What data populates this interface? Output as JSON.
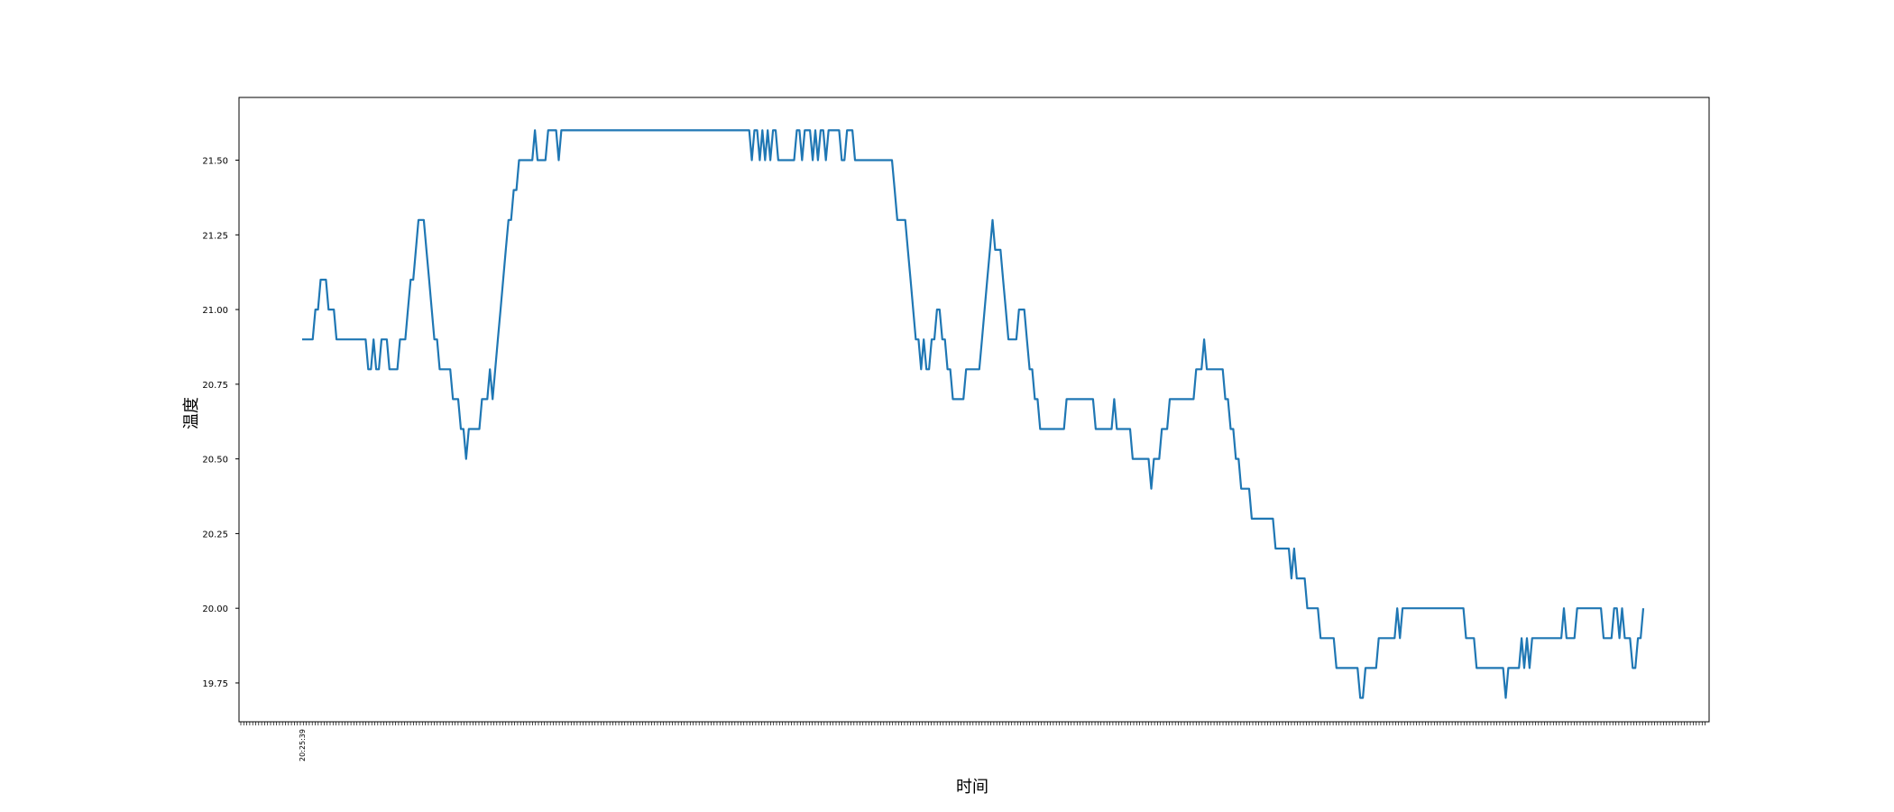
{
  "chart_data": {
    "type": "line",
    "title": "",
    "xlabel": "时间",
    "ylabel": "温度",
    "ylim": [
      19.62,
      21.71
    ],
    "yticks": [
      19.75,
      20.0,
      20.25,
      20.5,
      20.75,
      21.0,
      21.25,
      21.5
    ],
    "ytick_labels": [
      "19.75",
      "20.00",
      "20.25",
      "20.50",
      "20.75",
      "21.00",
      "21.25",
      "21.50"
    ],
    "xtick_labels": [
      "20:25:39"
    ],
    "grid": false,
    "legend": "none",
    "series": [
      {
        "color": "#1f77b4",
        "values": [
          20.9,
          20.9,
          20.9,
          20.9,
          20.9,
          21.0,
          21.0,
          21.1,
          21.1,
          21.1,
          21.0,
          21.0,
          21.0,
          20.9,
          20.9,
          20.9,
          20.9,
          20.9,
          20.9,
          20.9,
          20.9,
          20.9,
          20.9,
          20.9,
          20.9,
          20.8,
          20.8,
          20.9,
          20.8,
          20.8,
          20.9,
          20.9,
          20.9,
          20.8,
          20.8,
          20.8,
          20.8,
          20.9,
          20.9,
          20.9,
          21.0,
          21.1,
          21.1,
          21.2,
          21.3,
          21.3,
          21.3,
          21.2,
          21.1,
          21.0,
          20.9,
          20.9,
          20.8,
          20.8,
          20.8,
          20.8,
          20.8,
          20.7,
          20.7,
          20.7,
          20.6,
          20.6,
          20.5,
          20.6,
          20.6,
          20.6,
          20.6,
          20.6,
          20.7,
          20.7,
          20.7,
          20.8,
          20.7,
          20.8,
          20.9,
          21.0,
          21.1,
          21.2,
          21.3,
          21.3,
          21.4,
          21.4,
          21.5,
          21.5,
          21.5,
          21.5,
          21.5,
          21.5,
          21.6,
          21.5,
          21.5,
          21.5,
          21.5,
          21.6,
          21.6,
          21.6,
          21.6,
          21.5,
          21.6,
          21.6,
          21.6,
          21.6,
          21.6,
          21.6,
          21.6,
          21.6,
          21.6,
          21.6,
          21.6,
          21.6,
          21.6,
          21.6,
          21.6,
          21.6,
          21.6,
          21.6,
          21.6,
          21.6,
          21.6,
          21.6,
          21.6,
          21.6,
          21.6,
          21.6,
          21.6,
          21.6,
          21.6,
          21.6,
          21.6,
          21.6,
          21.6,
          21.6,
          21.6,
          21.6,
          21.6,
          21.6,
          21.6,
          21.6,
          21.6,
          21.6,
          21.6,
          21.6,
          21.6,
          21.6,
          21.6,
          21.6,
          21.6,
          21.6,
          21.6,
          21.6,
          21.6,
          21.6,
          21.6,
          21.6,
          21.6,
          21.6,
          21.6,
          21.6,
          21.6,
          21.6,
          21.6,
          21.6,
          21.6,
          21.6,
          21.6,
          21.6,
          21.6,
          21.6,
          21.6,
          21.6,
          21.5,
          21.6,
          21.6,
          21.5,
          21.6,
          21.5,
          21.6,
          21.5,
          21.6,
          21.6,
          21.5,
          21.5,
          21.5,
          21.5,
          21.5,
          21.5,
          21.5,
          21.6,
          21.6,
          21.5,
          21.6,
          21.6,
          21.6,
          21.5,
          21.6,
          21.5,
          21.6,
          21.6,
          21.5,
          21.6,
          21.6,
          21.6,
          21.6,
          21.6,
          21.5,
          21.5,
          21.6,
          21.6,
          21.6,
          21.5,
          21.5,
          21.5,
          21.5,
          21.5,
          21.5,
          21.5,
          21.5,
          21.5,
          21.5,
          21.5,
          21.5,
          21.5,
          21.5,
          21.5,
          21.4,
          21.3,
          21.3,
          21.3,
          21.3,
          21.2,
          21.1,
          21.0,
          20.9,
          20.9,
          20.8,
          20.9,
          20.8,
          20.8,
          20.9,
          20.9,
          21.0,
          21.0,
          20.9,
          20.9,
          20.8,
          20.8,
          20.7,
          20.7,
          20.7,
          20.7,
          20.7,
          20.8,
          20.8,
          20.8,
          20.8,
          20.8,
          20.8,
          20.9,
          21.0,
          21.1,
          21.2,
          21.3,
          21.2,
          21.2,
          21.2,
          21.1,
          21.0,
          20.9,
          20.9,
          20.9,
          20.9,
          21.0,
          21.0,
          21.0,
          20.9,
          20.8,
          20.8,
          20.7,
          20.7,
          20.6,
          20.6,
          20.6,
          20.6,
          20.6,
          20.6,
          20.6,
          20.6,
          20.6,
          20.6,
          20.7,
          20.7,
          20.7,
          20.7,
          20.7,
          20.7,
          20.7,
          20.7,
          20.7,
          20.7,
          20.7,
          20.6,
          20.6,
          20.6,
          20.6,
          20.6,
          20.6,
          20.6,
          20.7,
          20.6,
          20.6,
          20.6,
          20.6,
          20.6,
          20.6,
          20.5,
          20.5,
          20.5,
          20.5,
          20.5,
          20.5,
          20.5,
          20.4,
          20.5,
          20.5,
          20.5,
          20.6,
          20.6,
          20.6,
          20.7,
          20.7,
          20.7,
          20.7,
          20.7,
          20.7,
          20.7,
          20.7,
          20.7,
          20.7,
          20.8,
          20.8,
          20.8,
          20.9,
          20.8,
          20.8,
          20.8,
          20.8,
          20.8,
          20.8,
          20.8,
          20.7,
          20.7,
          20.6,
          20.6,
          20.5,
          20.5,
          20.4,
          20.4,
          20.4,
          20.4,
          20.3,
          20.3,
          20.3,
          20.3,
          20.3,
          20.3,
          20.3,
          20.3,
          20.3,
          20.2,
          20.2,
          20.2,
          20.2,
          20.2,
          20.2,
          20.1,
          20.2,
          20.1,
          20.1,
          20.1,
          20.1,
          20.0,
          20.0,
          20.0,
          20.0,
          20.0,
          19.9,
          19.9,
          19.9,
          19.9,
          19.9,
          19.9,
          19.8,
          19.8,
          19.8,
          19.8,
          19.8,
          19.8,
          19.8,
          19.8,
          19.8,
          19.7,
          19.7,
          19.8,
          19.8,
          19.8,
          19.8,
          19.8,
          19.9,
          19.9,
          19.9,
          19.9,
          19.9,
          19.9,
          19.9,
          20.0,
          19.9,
          20.0,
          20.0,
          20.0,
          20.0,
          20.0,
          20.0,
          20.0,
          20.0,
          20.0,
          20.0,
          20.0,
          20.0,
          20.0,
          20.0,
          20.0,
          20.0,
          20.0,
          20.0,
          20.0,
          20.0,
          20.0,
          20.0,
          20.0,
          20.0,
          19.9,
          19.9,
          19.9,
          19.9,
          19.8,
          19.8,
          19.8,
          19.8,
          19.8,
          19.8,
          19.8,
          19.8,
          19.8,
          19.8,
          19.8,
          19.7,
          19.8,
          19.8,
          19.8,
          19.8,
          19.8,
          19.9,
          19.8,
          19.9,
          19.8,
          19.9,
          19.9,
          19.9,
          19.9,
          19.9,
          19.9,
          19.9,
          19.9,
          19.9,
          19.9,
          19.9,
          19.9,
          20.0,
          19.9,
          19.9,
          19.9,
          19.9,
          20.0,
          20.0,
          20.0,
          20.0,
          20.0,
          20.0,
          20.0,
          20.0,
          20.0,
          20.0,
          19.9,
          19.9,
          19.9,
          19.9,
          20.0,
          20.0,
          19.9,
          20.0,
          19.9,
          19.9,
          19.9,
          19.8,
          19.8,
          19.9,
          19.9,
          20.0
        ]
      }
    ]
  }
}
